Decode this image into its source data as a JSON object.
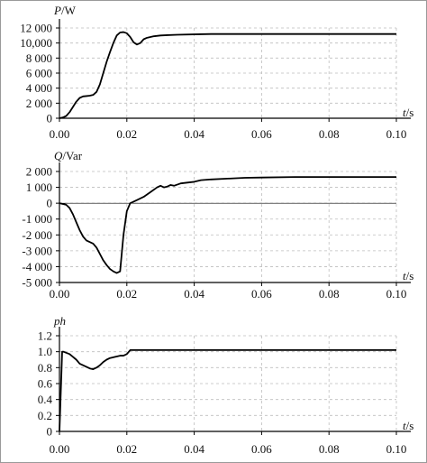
{
  "chart_data": [
    {
      "type": "line",
      "ylabel_var": "P",
      "ylabel_unit": "/W",
      "xlabel_var": "t",
      "xlabel_unit": "/s",
      "xlim": [
        0,
        0.1
      ],
      "ylim": [
        0,
        12000
      ],
      "x_ticks": [
        "0.00",
        "0.02",
        "0.04",
        "0.06",
        "0.08",
        "0.10"
      ],
      "y_ticks": [
        "0",
        "2 000",
        "4 000",
        "6 000",
        "8 000",
        "10,000",
        "12 000"
      ],
      "grid": "dashed",
      "series": [
        {
          "x": [
            0,
            0.001,
            0.002,
            0.003,
            0.004,
            0.005,
            0.006,
            0.007,
            0.008,
            0.009,
            0.01,
            0.011,
            0.012,
            0.013,
            0.014,
            0.015,
            0.016,
            0.017,
            0.018,
            0.019,
            0.02,
            0.021,
            0.022,
            0.023,
            0.024,
            0.025,
            0.026,
            0.028,
            0.03,
            0.032,
            0.035,
            0.04,
            0.045,
            0.05,
            0.06,
            0.07,
            0.08,
            0.09,
            0.1
          ],
          "values": [
            0,
            100,
            300,
            800,
            1500,
            2200,
            2700,
            2900,
            2950,
            3000,
            3100,
            3500,
            4500,
            6000,
            7500,
            8800,
            10000,
            11000,
            11400,
            11450,
            11300,
            10800,
            10100,
            9800,
            10000,
            10500,
            10700,
            10900,
            11000,
            11050,
            11100,
            11150,
            11200,
            11200,
            11200,
            11200,
            11200,
            11200,
            11200
          ]
        }
      ]
    },
    {
      "type": "line",
      "ylabel_var": "Q",
      "ylabel_unit": "/Var",
      "xlabel_var": "t",
      "xlabel_unit": "/s",
      "xlim": [
        0,
        0.1
      ],
      "ylim": [
        -5000,
        2000
      ],
      "x_ticks": [
        "0.00",
        "0.02",
        "0.04",
        "0.06",
        "0.08",
        "0.10"
      ],
      "y_ticks": [
        "-5 000",
        "-4 000",
        "-3 000",
        "-2 000",
        "-1 000",
        "0",
        "1 000",
        "2 000"
      ],
      "grid": "dashed",
      "series": [
        {
          "x": [
            0,
            0.002,
            0.003,
            0.004,
            0.005,
            0.006,
            0.007,
            0.008,
            0.009,
            0.01,
            0.011,
            0.012,
            0.013,
            0.014,
            0.015,
            0.016,
            0.017,
            0.018,
            0.019,
            0.02,
            0.021,
            0.022,
            0.023,
            0.025,
            0.027,
            0.029,
            0.03,
            0.031,
            0.032,
            0.033,
            0.034,
            0.036,
            0.038,
            0.04,
            0.042,
            0.045,
            0.05,
            0.055,
            0.06,
            0.07,
            0.08,
            0.09,
            0.1
          ],
          "values": [
            0,
            -100,
            -300,
            -700,
            -1200,
            -1700,
            -2100,
            -2350,
            -2450,
            -2550,
            -2800,
            -3200,
            -3600,
            -3900,
            -4150,
            -4300,
            -4400,
            -4300,
            -2000,
            -500,
            0,
            100,
            200,
            400,
            700,
            1000,
            1100,
            1000,
            1050,
            1150,
            1100,
            1250,
            1300,
            1350,
            1450,
            1500,
            1550,
            1600,
            1620,
            1650,
            1650,
            1650,
            1650
          ]
        }
      ]
    },
    {
      "type": "line",
      "ylabel_var": "ph",
      "ylabel_unit": "",
      "xlabel_var": "t",
      "xlabel_unit": "/s",
      "xlim": [
        0,
        0.1
      ],
      "ylim": [
        0,
        1.2
      ],
      "x_ticks": [
        "0.00",
        "0.02",
        "0.04",
        "0.06",
        "0.08",
        "0.10"
      ],
      "y_ticks": [
        "0",
        "0.2",
        "0.4",
        "0.6",
        "0.8",
        "1.0",
        "1.2"
      ],
      "grid": "dashed",
      "series": [
        {
          "x": [
            0,
            0.0004,
            0.0008,
            0.0012,
            0.003,
            0.005,
            0.006,
            0.007,
            0.008,
            0.009,
            0.01,
            0.011,
            0.012,
            0.013,
            0.014,
            0.015,
            0.016,
            0.017,
            0.018,
            0.019,
            0.02,
            0.021,
            0.022,
            0.025,
            0.03,
            0.04,
            0.05,
            0.06,
            0.07,
            0.08,
            0.09,
            0.1
          ],
          "values": [
            0,
            0.5,
            1.0,
            1.0,
            0.97,
            0.9,
            0.85,
            0.83,
            0.81,
            0.79,
            0.78,
            0.8,
            0.83,
            0.87,
            0.9,
            0.92,
            0.93,
            0.94,
            0.95,
            0.95,
            0.97,
            1.02,
            1.02,
            1.02,
            1.02,
            1.02,
            1.02,
            1.02,
            1.02,
            1.02,
            1.02,
            1.02
          ]
        }
      ]
    }
  ]
}
